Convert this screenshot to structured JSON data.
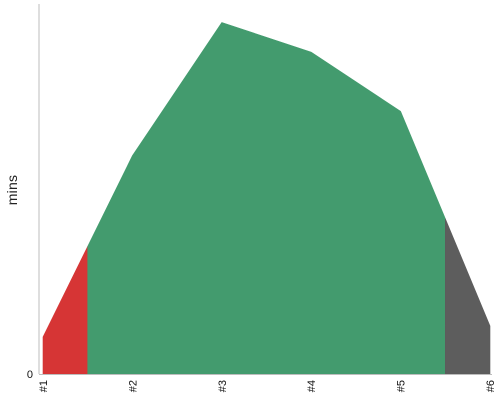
{
  "chart_data": {
    "type": "area",
    "ylabel": "mins",
    "xlabel": "",
    "title": "",
    "categories": [
      "#1",
      "#2",
      "#3",
      "#4",
      "#5",
      "#6"
    ],
    "x": [
      1,
      2,
      3,
      4,
      5,
      6
    ],
    "values": [
      0.1,
      0.59,
      0.95,
      0.87,
      0.71,
      0.13
    ],
    "y_tick_labels": [
      "0"
    ],
    "ylim": [
      0,
      1
    ],
    "grid": false,
    "segments": [
      {
        "x_start": 1,
        "x_end": 1.5,
        "color": "#d63535"
      },
      {
        "x_start": 1.5,
        "x_end": 5.5,
        "color": "#439b6e"
      },
      {
        "x_start": 5.5,
        "x_end": 6,
        "color": "#5d5d5d"
      }
    ],
    "axis_color": "#bdbdbd"
  }
}
